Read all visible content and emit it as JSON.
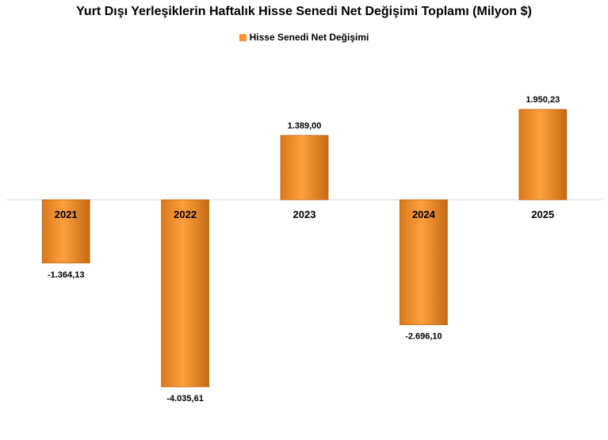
{
  "chart_data": {
    "type": "bar",
    "title": "Yurt Dışı Yerleşiklerin Haftalık Hisse Senedi Net Değişimi Toplamı (Milyon $)",
    "legend": {
      "position": "top",
      "label": "Hisse Senedi Net Değişimi"
    },
    "categories": [
      "2021",
      "2022",
      "2023",
      "2024",
      "2025"
    ],
    "series": [
      {
        "name": "Hisse Senedi Net Değişimi",
        "values": [
          -1364.13,
          -4035.61,
          1389.0,
          -2696.1,
          1950.23
        ],
        "labels": [
          "-1.364,13",
          "-4.035,61",
          "1.389,00",
          "-2.696,10",
          "1.950,23"
        ]
      }
    ],
    "xlabel": "",
    "ylabel": "",
    "ylim": [
      -4035.61,
      1950.23
    ],
    "grid": false,
    "colors": {
      "bar": "#f7922e",
      "bar_light": "#ffa03d",
      "bar_dark": "#c46a14",
      "axis": "#d9d9d9"
    }
  }
}
